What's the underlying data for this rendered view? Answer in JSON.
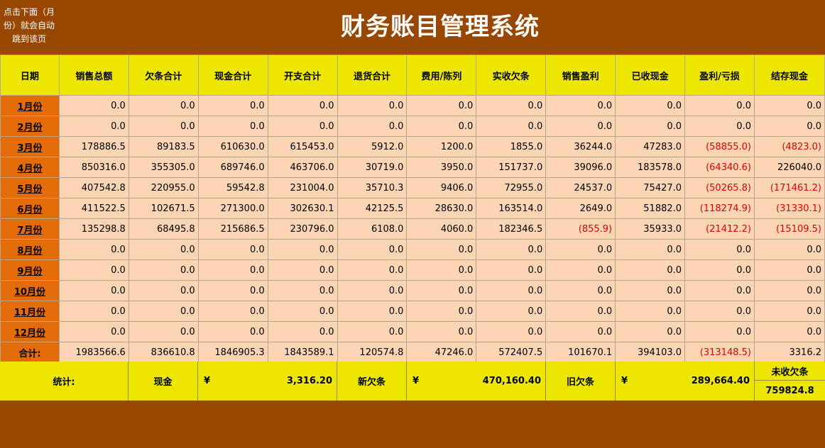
{
  "header": {
    "hint": "点击下面（月份）就会自动跳到该页",
    "title": "财务账目管理系统"
  },
  "columns": [
    "日期",
    "销售总额",
    "欠条合计",
    "现金合计",
    "开支合计",
    "退货合计",
    "费用/陈列",
    "实收欠条",
    "销售盈利",
    "已收现金",
    "盈利/亏损",
    "结存现金"
  ],
  "rows": [
    {
      "month": "1月份",
      "values": [
        "0.0",
        "0.0",
        "0.0",
        "0.0",
        "0.0",
        "0.0",
        "0.0",
        "0.0",
        "0.0",
        "0.0",
        "0.0"
      ]
    },
    {
      "month": "2月份",
      "values": [
        "0.0",
        "0.0",
        "0.0",
        "0.0",
        "0.0",
        "0.0",
        "0.0",
        "0.0",
        "0.0",
        "0.0",
        "0.0"
      ]
    },
    {
      "month": "3月份",
      "values": [
        "178886.5",
        "89183.5",
        "610630.0",
        "615453.0",
        "5912.0",
        "1200.0",
        "1855.0",
        "36244.0",
        "47283.0",
        "(58855.0)",
        "(4823.0)"
      ]
    },
    {
      "month": "4月份",
      "values": [
        "850316.0",
        "355305.0",
        "689746.0",
        "463706.0",
        "30719.0",
        "3950.0",
        "151737.0",
        "39096.0",
        "183578.0",
        "(64340.6)",
        "226040.0"
      ]
    },
    {
      "month": "5月份",
      "values": [
        "407542.8",
        "220955.0",
        "59542.8",
        "231004.0",
        "35710.3",
        "9406.0",
        "72955.0",
        "24537.0",
        "75427.0",
        "(50265.8)",
        "(171461.2)"
      ]
    },
    {
      "month": "6月份",
      "values": [
        "411522.5",
        "102671.5",
        "271300.0",
        "302630.1",
        "42125.5",
        "28630.0",
        "163514.0",
        "2649.0",
        "51882.0",
        "(118274.9)",
        "(31330.1)"
      ]
    },
    {
      "month": "7月份",
      "values": [
        "135298.8",
        "68495.8",
        "215686.5",
        "230796.0",
        "6108.0",
        "4060.0",
        "182346.5",
        "(855.9)",
        "35933.0",
        "(21412.2)",
        "(15109.5)"
      ]
    },
    {
      "month": "8月份",
      "values": [
        "0.0",
        "0.0",
        "0.0",
        "0.0",
        "0.0",
        "0.0",
        "0.0",
        "0.0",
        "0.0",
        "0.0",
        "0.0"
      ]
    },
    {
      "month": "9月份",
      "values": [
        "0.0",
        "0.0",
        "0.0",
        "0.0",
        "0.0",
        "0.0",
        "0.0",
        "0.0",
        "0.0",
        "0.0",
        "0.0"
      ]
    },
    {
      "month": "10月份",
      "values": [
        "0.0",
        "0.0",
        "0.0",
        "0.0",
        "0.0",
        "0.0",
        "0.0",
        "0.0",
        "0.0",
        "0.0",
        "0.0"
      ]
    },
    {
      "month": "11月份",
      "values": [
        "0.0",
        "0.0",
        "0.0",
        "0.0",
        "0.0",
        "0.0",
        "0.0",
        "0.0",
        "0.0",
        "0.0",
        "0.0"
      ]
    },
    {
      "month": "12月份",
      "values": [
        "0.0",
        "0.0",
        "0.0",
        "0.0",
        "0.0",
        "0.0",
        "0.0",
        "0.0",
        "0.0",
        "0.0",
        "0.0"
      ]
    }
  ],
  "total": {
    "label": "合计:",
    "values": [
      "1983566.6",
      "836610.8",
      "1846905.3",
      "1843589.1",
      "120574.8",
      "47246.0",
      "572407.5",
      "101670.1",
      "394103.0",
      "(313148.5)",
      "3316.2"
    ]
  },
  "stats": {
    "label": "统计:",
    "cash_label": "现金",
    "cash_currency": "¥",
    "cash_value": "3,316.20",
    "new_iou_label": "新欠条",
    "new_iou_currency": "¥",
    "new_iou_value": "470,160.40",
    "old_iou_label": "旧欠条",
    "old_iou_currency": "¥",
    "old_iou_value": "289,664.40",
    "unpaid_label": "未收欠条",
    "unpaid_value": "759824.8"
  },
  "colors": {
    "background": "#984700",
    "header_yellow": "#ede600",
    "month_orange": "#e36c09",
    "cell_peach": "#fcd5b5",
    "negative": "#e00000"
  }
}
